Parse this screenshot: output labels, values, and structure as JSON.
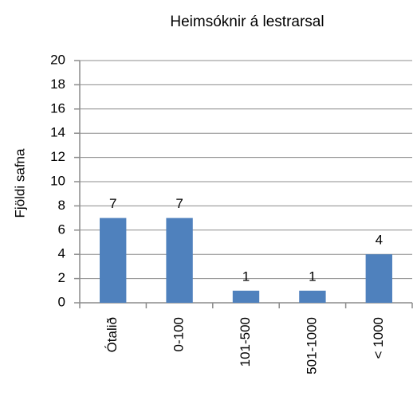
{
  "chart_data": {
    "type": "bar",
    "title": "Heimsóknir á lestrarsal",
    "y_label": "Fjöldi safna",
    "categories": [
      "Ótalið",
      "0-100",
      "101-500",
      "501-1000",
      "< 1000"
    ],
    "values": [
      7,
      7,
      1,
      1,
      4
    ],
    "color": "#4f81bd",
    "ylim": [
      0,
      20
    ],
    "yticks": [
      0,
      2,
      4,
      6,
      8,
      10,
      12,
      14,
      16,
      18,
      20
    ],
    "grid": true
  }
}
